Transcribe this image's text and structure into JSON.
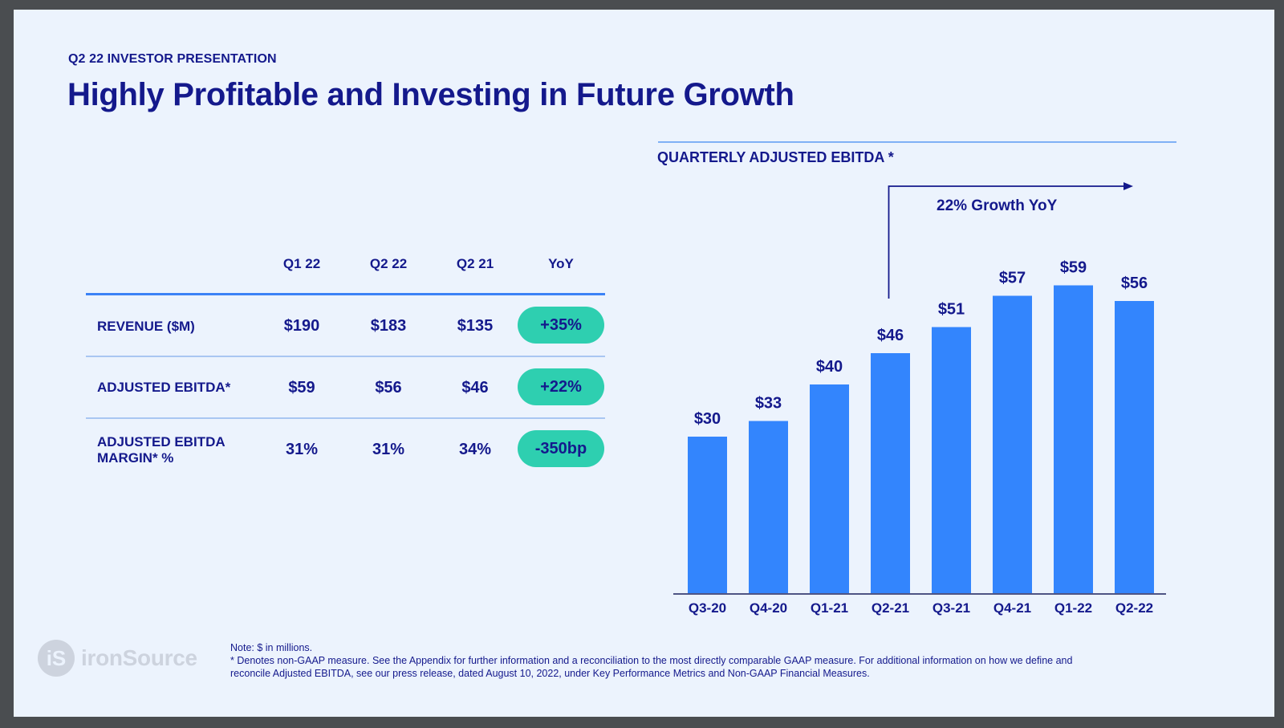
{
  "slide": {
    "kicker": "Q2 22 INVESTOR PRESENTATION",
    "title": "Highly Profitable and Investing in Future Growth"
  },
  "table": {
    "headers": [
      "Q1 22",
      "Q2 22",
      "Q2 21",
      "YoY"
    ],
    "rows": [
      {
        "label": "REVENUE ($M)",
        "values": [
          "$190",
          "$183",
          "$135"
        ],
        "yoy": "+35%"
      },
      {
        "label": "ADJUSTED EBITDA*",
        "values": [
          "$59",
          "$56",
          "$46"
        ],
        "yoy": "+22%"
      },
      {
        "label_line1": "ADJUSTED EBITDA",
        "label_line2": "MARGIN* %",
        "values": [
          "31%",
          "31%",
          "34%"
        ],
        "yoy": "-350bp"
      }
    ]
  },
  "chart_data": {
    "type": "bar",
    "title": "QUARTERLY ADJUSTED EBITDA *",
    "categories": [
      "Q3-20",
      "Q4-20",
      "Q1-21",
      "Q2-21",
      "Q3-21",
      "Q4-21",
      "Q1-22",
      "Q2-22"
    ],
    "values": [
      30,
      33,
      40,
      46,
      51,
      57,
      59,
      56
    ],
    "value_labels": [
      "$30",
      "$33",
      "$40",
      "$46",
      "$51",
      "$57",
      "$59",
      "$56"
    ],
    "ylim": [
      0,
      60
    ],
    "grid": false,
    "bar_color": "#3385fd",
    "annotation": {
      "text": "22% Growth YoY",
      "from_category": "Q2-21"
    }
  },
  "footer": {
    "logo_text": "ironSource",
    "note_line1": "Note: $ in millions.",
    "note_line2": "* Denotes non-GAAP measure. See the Appendix for further information and a reconciliation to the most directly comparable GAAP measure. For additional information on how we define and reconcile Adjusted EBITDA, see our press release, dated August 10, 2022, under Key Performance Metrics and Non-GAAP Financial Measures."
  },
  "colors": {
    "navy": "#14198c",
    "accent_blue": "#3385fd",
    "pill_teal": "#2ecfb0",
    "background": "#ecf3fd"
  }
}
